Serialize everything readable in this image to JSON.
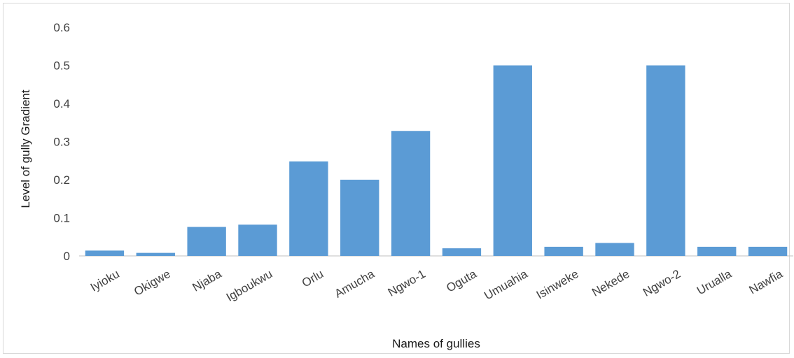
{
  "chart_data": {
    "type": "bar",
    "title": "",
    "xlabel": "Names of gullies",
    "ylabel": "Level of gully Gradient",
    "ylim": [
      0,
      0.6
    ],
    "yticks": [
      "0",
      "0.1",
      "0.2",
      "0.3",
      "0.4",
      "0.5",
      "0.6"
    ],
    "grid": false,
    "legend": "none",
    "bar_color": "#5b9bd5",
    "categories": [
      "Iyioku",
      "Okigwe",
      "Njaba",
      "Igboukwu",
      "Orlu",
      "Amucha",
      "Ngwo-1",
      "Oguta",
      "Umuahia",
      "Isinweke",
      "Nekede",
      "Ngwo-2",
      "Urualla",
      "Nawfia"
    ],
    "values": [
      0.014,
      0.008,
      0.076,
      0.082,
      0.248,
      0.2,
      0.328,
      0.02,
      0.5,
      0.024,
      0.034,
      0.5,
      0.024,
      0.024
    ]
  }
}
